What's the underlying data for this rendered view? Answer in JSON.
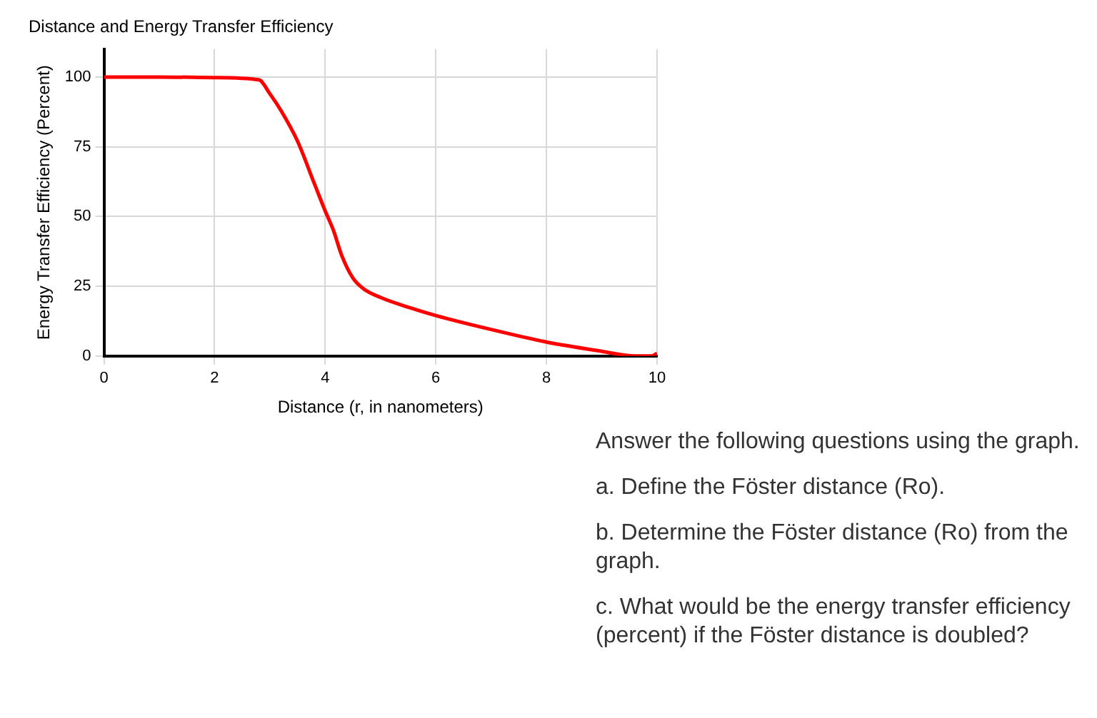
{
  "chart_data": {
    "type": "line",
    "title": "Distance and Energy Transfer Efficiency",
    "xlabel": "Distance (r, in nanometers)",
    "ylabel": "Energy Transfer Efficiency (Percent)",
    "x": [
      0,
      1,
      2,
      2.8,
      3,
      3.2,
      3.5,
      3.8,
      4,
      4.15,
      4.3,
      4.5,
      4.7,
      5,
      5.5,
      6,
      7,
      8,
      9,
      9.6,
      9.9,
      10
    ],
    "series": [
      {
        "color": "#ff0000",
        "values": [
          100,
          100,
          99.8,
          99,
          94,
          88,
          77,
          62,
          52,
          45,
          36,
          28,
          24,
          21,
          17.5,
          14.5,
          9.5,
          5,
          1.7,
          0,
          0,
          1
        ]
      }
    ],
    "xlim": [
      0,
      10
    ],
    "xticks": [
      0,
      2,
      4,
      6,
      8,
      10
    ],
    "ylim": [
      0,
      110
    ],
    "yticks": [
      0,
      25,
      50,
      75,
      100
    ],
    "grid": true,
    "legend": false,
    "marker": "none",
    "line_style": "solid",
    "annotations": [
      "Answer the following questions using the graph.",
      "a. Define the Föster distance (Ro).",
      "b. Determine the Föster distance (Ro) from the graph.",
      "c. What would be the energy transfer efficiency (percent) if the Föster distance is doubled?"
    ]
  }
}
